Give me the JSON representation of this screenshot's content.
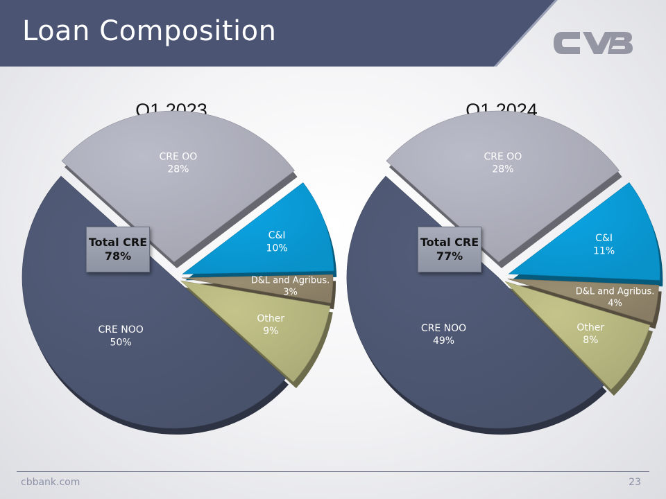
{
  "slide": {
    "title": "Loan Composition",
    "footer_site": "cbbank.com",
    "page_number": "23",
    "banner_color": "#4b5573",
    "logo_alt": "CVB"
  },
  "chart_data": [
    {
      "type": "pie",
      "title": "Q1 2023",
      "slices": [
        {
          "label": "CRE OO",
          "value": 28,
          "value_label": "28%",
          "color": "#babcc9"
        },
        {
          "label": "C&I",
          "value": 10,
          "value_label": "10%",
          "color": "#0aa5e4"
        },
        {
          "label": "D&L  and Agribus.",
          "value": 3,
          "value_label": "3%",
          "color": "#9a8e72"
        },
        {
          "label": "Other",
          "value": 9,
          "value_label": "9%",
          "color": "#c4c48a"
        },
        {
          "label": "CRE NOO",
          "value": 50,
          "value_label": "50%",
          "color": "#535d7a"
        }
      ],
      "callout": {
        "line1": "Total CRE",
        "line2": "78%"
      }
    },
    {
      "type": "pie",
      "title": "Q1 2024",
      "slices": [
        {
          "label": "CRE OO",
          "value": 28,
          "value_label": "28%",
          "color": "#babcc9"
        },
        {
          "label": "C&I",
          "value": 11,
          "value_label": "11%",
          "color": "#0aa5e4"
        },
        {
          "label": "D&L  and Agribus.",
          "value": 4,
          "value_label": "4%",
          "color": "#9a8e72"
        },
        {
          "label": "Other",
          "value": 8,
          "value_label": "8%",
          "color": "#c4c48a"
        },
        {
          "label": "CRE NOO",
          "value": 49,
          "value_label": "49%",
          "color": "#535d7a"
        }
      ],
      "callout": {
        "line1": "Total CRE",
        "line2": "77%"
      }
    }
  ]
}
